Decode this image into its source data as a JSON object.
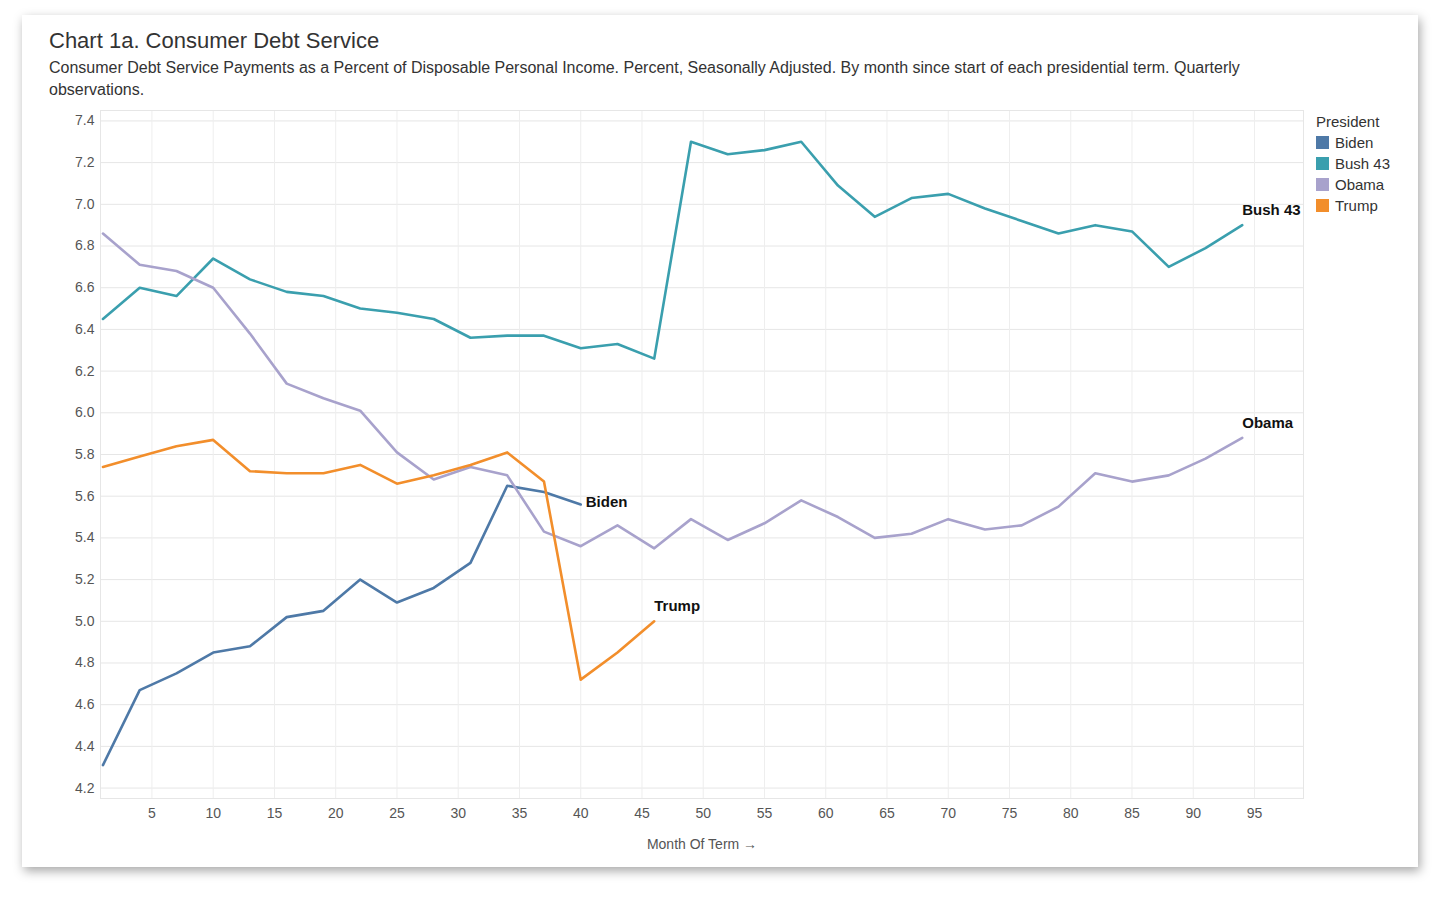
{
  "chart_data": {
    "type": "line",
    "title": "Chart 1a. Consumer Debt Service",
    "subtitle": "Consumer Debt Service Payments as a Percent of Disposable Personal Income. Percent, Seasonally Adjusted. By month since start of each presidential term. Quarterly observations.",
    "xlabel": "Month Of Term",
    "legend_title": "President",
    "legend": "top-right",
    "grid": true,
    "x": [
      1,
      4,
      7,
      10,
      13,
      16,
      19,
      22,
      25,
      28,
      31,
      34,
      37,
      40,
      43,
      46,
      49,
      52,
      55,
      58,
      61,
      64,
      67,
      70,
      73,
      76,
      79,
      82,
      85,
      88,
      91,
      94
    ],
    "xlim": [
      0.8,
      99
    ],
    "xticks": [
      5,
      10,
      15,
      20,
      25,
      30,
      35,
      40,
      45,
      50,
      55,
      60,
      65,
      70,
      75,
      80,
      85,
      90,
      95
    ],
    "ylim": [
      4.15,
      7.45
    ],
    "yticks": [
      4.2,
      4.4,
      4.6,
      4.8,
      {
        "value": 5,
        "label": "5.0"
      },
      5.2,
      5.4,
      5.6,
      5.8,
      {
        "value": 6,
        "label": "6.0"
      },
      6.2,
      6.4,
      6.6,
      6.8,
      {
        "value": 7,
        "label": "7.0"
      },
      7.2,
      7.4
    ],
    "series": [
      {
        "name": "Biden",
        "color": "#4e79a7",
        "values": [
          4.31,
          4.67,
          4.75,
          4.85,
          4.88,
          5.02,
          5.05,
          5.2,
          5.09,
          5.16,
          5.28,
          5.65,
          5.62,
          5.56,
          null,
          null,
          null,
          null,
          null,
          null,
          null,
          null,
          null,
          null,
          null,
          null,
          null,
          null,
          null,
          null,
          null,
          null
        ]
      },
      {
        "name": "Bush 43",
        "color": "#3a9fae",
        "values": [
          6.45,
          6.6,
          6.56,
          6.74,
          6.64,
          6.58,
          6.56,
          6.5,
          6.48,
          6.45,
          6.36,
          6.37,
          6.37,
          6.31,
          6.33,
          6.26,
          7.3,
          7.24,
          7.26,
          7.3,
          7.09,
          6.94,
          7.03,
          7.05,
          6.98,
          6.92,
          6.86,
          6.9,
          6.87,
          6.7,
          6.79,
          6.9
        ]
      },
      {
        "name": "Obama",
        "color": "#a8a2cc",
        "values": [
          6.86,
          6.71,
          6.68,
          6.6,
          6.38,
          6.14,
          6.07,
          6.01,
          5.81,
          5.68,
          5.74,
          5.7,
          5.43,
          5.36,
          5.46,
          5.35,
          5.49,
          5.39,
          5.47,
          5.58,
          5.5,
          5.4,
          5.42,
          5.49,
          5.44,
          5.46,
          5.55,
          5.71,
          5.67,
          5.7,
          5.78,
          5.88
        ]
      },
      {
        "name": "Trump",
        "color": "#f28e2b",
        "values": [
          5.74,
          5.79,
          5.84,
          5.87,
          5.72,
          5.71,
          5.71,
          5.75,
          5.66,
          5.7,
          5.75,
          5.81,
          5.67,
          4.72,
          4.85,
          5.0,
          null,
          null,
          null,
          null,
          null,
          null,
          null,
          null,
          null,
          null,
          null,
          null,
          null,
          null,
          null,
          null
        ]
      }
    ]
  }
}
